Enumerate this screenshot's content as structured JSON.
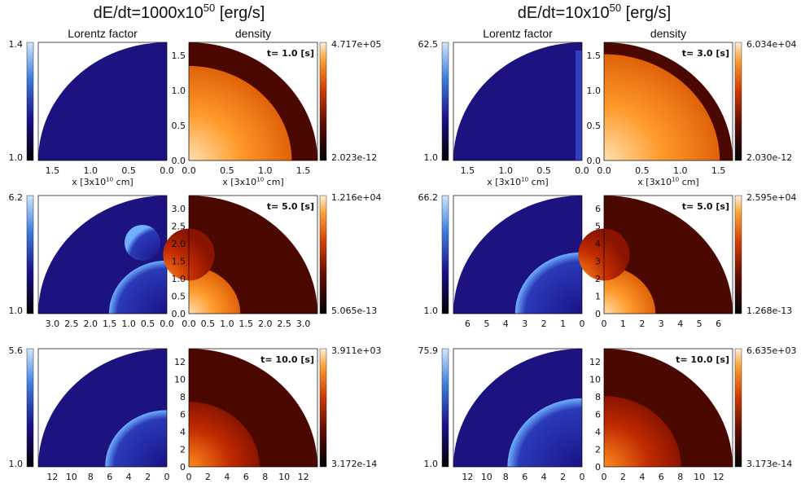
{
  "figures": [
    {
      "title": {
        "main": "dE/dt=1000x10",
        "sup": "50",
        "tail": " [erg/s]"
      },
      "headers": {
        "lorentz": "Lorentz factor",
        "density": "density"
      },
      "xlabel": {
        "main": "x [3x10",
        "sup": "10",
        "tail": " cm]"
      },
      "rows": [
        {
          "lorentz": {
            "max": "1.4",
            "min": "1.0",
            "xticks": [
              "1.5",
              "1.0",
              "0.5",
              "0.0"
            ]
          },
          "density": {
            "max": "4.717e+05",
            "min": "2.023e-12",
            "time": "t= 1.0 [s]",
            "xticks": [
              "0.0",
              "0.5",
              "1.0",
              "1.5"
            ],
            "yticks": [
              "1.5",
              "1.0",
              "0.5",
              "0.0"
            ]
          }
        },
        {
          "lorentz": {
            "max": "6.2",
            "min": "1.0",
            "xticks": [
              "3.0",
              "2.5",
              "2.0",
              "1.5",
              "1.0",
              "0.5",
              "0.0"
            ]
          },
          "density": {
            "max": "1.216e+04",
            "min": "5.065e-13",
            "time": "t= 5.0 [s]",
            "xticks": [
              "0.0",
              "0.5",
              "1.0",
              "1.5",
              "2.0",
              "2.5",
              "3.0"
            ],
            "yticks": [
              "3.0",
              "2.5",
              "2.0",
              "1.5",
              "1.0",
              "0.5",
              "0.0"
            ]
          }
        },
        {
          "lorentz": {
            "max": "5.6",
            "min": "1.0",
            "xticks": [
              "12",
              "10",
              "8",
              "6",
              "4",
              "2",
              "0"
            ]
          },
          "density": {
            "max": "3.911e+03",
            "min": "3.172e-14",
            "time": "t= 10.0 [s]",
            "xticks": [
              "0",
              "2",
              "4",
              "6",
              "8",
              "10",
              "12"
            ],
            "yticks": [
              "12",
              "10",
              "8",
              "6",
              "4",
              "2",
              "0"
            ]
          }
        }
      ]
    },
    {
      "title": {
        "main": "dE/dt=10x10",
        "sup": "50",
        "tail": " [erg/s]"
      },
      "headers": {
        "lorentz": "Lorentz factor",
        "density": "density"
      },
      "xlabel": {
        "main": "x [3x10",
        "sup": "10",
        "tail": " cm]"
      },
      "rows": [
        {
          "lorentz": {
            "max": "62.5",
            "min": "1.0",
            "xticks": [
              "1.5",
              "1.0",
              "0.5",
              "0.0"
            ]
          },
          "density": {
            "max": "6.034e+04",
            "min": "2.030e-12",
            "time": "t= 3.0 [s]",
            "xticks": [
              "0.0",
              "0.5",
              "1.0",
              "1.5"
            ],
            "yticks": [
              "1.5",
              "1.0",
              "0.5",
              "0.0"
            ]
          }
        },
        {
          "lorentz": {
            "max": "66.2",
            "min": "1.0",
            "xticks": [
              "6",
              "5",
              "4",
              "3",
              "2",
              "1",
              "0"
            ]
          },
          "density": {
            "max": "2.595e+04",
            "min": "1.268e-13",
            "time": "t= 5.0 [s]",
            "xticks": [
              "0",
              "1",
              "2",
              "3",
              "4",
              "5",
              "6"
            ],
            "yticks": [
              "6",
              "5",
              "4",
              "3",
              "2",
              "1",
              "0"
            ]
          }
        },
        {
          "lorentz": {
            "max": "75.9",
            "min": "1.0",
            "xticks": [
              "12",
              "10",
              "8",
              "6",
              "4",
              "2",
              "0"
            ]
          },
          "density": {
            "max": "6.635e+03",
            "min": "3.173e-14",
            "time": "t= 10.0 [s]",
            "xticks": [
              "0",
              "2",
              "4",
              "6",
              "8",
              "10",
              "12"
            ],
            "yticks": [
              "12",
              "10",
              "8",
              "6",
              "4",
              "2",
              "0"
            ]
          }
        }
      ]
    }
  ]
}
